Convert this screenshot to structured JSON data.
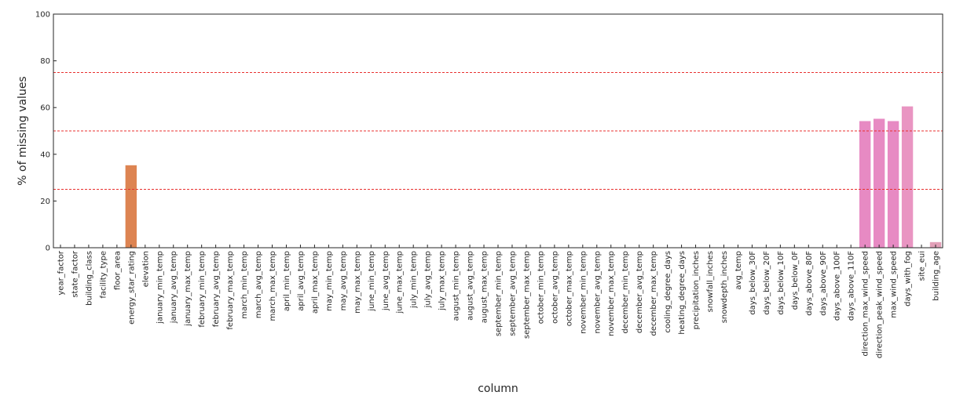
{
  "chart_data": {
    "type": "bar",
    "xlabel": "column",
    "ylabel": "% of missing values",
    "ylim": [
      0,
      100
    ],
    "yticks": [
      "0",
      "20",
      "40",
      "60",
      "80",
      "100"
    ],
    "reference_lines": [
      25,
      50,
      75
    ],
    "reference_line_color": "#e8302f",
    "grid": false,
    "categories": [
      "year_factor",
      "state_factor",
      "building_class",
      "facility_type",
      "floor_area",
      "energy_star_rating",
      "elevation",
      "january_min_temp",
      "january_avg_temp",
      "january_max_temp",
      "february_min_temp",
      "february_avg_temp",
      "february_max_temp",
      "march_min_temp",
      "march_avg_temp",
      "march_max_temp",
      "april_min_temp",
      "april_avg_temp",
      "april_max_temp",
      "may_min_temp",
      "may_avg_temp",
      "may_max_temp",
      "june_min_temp",
      "june_avg_temp",
      "june_max_temp",
      "july_min_temp",
      "july_avg_temp",
      "july_max_temp",
      "august_min_temp",
      "august_avg_temp",
      "august_max_temp",
      "september_min_temp",
      "september_avg_temp",
      "september_max_temp",
      "october_min_temp",
      "october_avg_temp",
      "october_max_temp",
      "november_min_temp",
      "november_avg_temp",
      "november_max_temp",
      "december_min_temp",
      "december_avg_temp",
      "december_max_temp",
      "cooling_degree_days",
      "heating_degree_days",
      "precipitation_inches",
      "snowfall_inches",
      "snowdepth_inches",
      "avg_temp",
      "days_below_30F",
      "days_below_20F",
      "days_below_10F",
      "days_below_0F",
      "days_above_80F",
      "days_above_90F",
      "days_above_100F",
      "days_above_110F",
      "direction_max_wind_speed",
      "direction_peak_wind_speed",
      "max_wind_speed",
      "days_with_fog",
      "site_eui",
      "building_age"
    ],
    "values": [
      0,
      0,
      0,
      0,
      0,
      35.3,
      0,
      0,
      0,
      0,
      0,
      0,
      0,
      0,
      0,
      0,
      0,
      0,
      0,
      0,
      0,
      0,
      0,
      0,
      0,
      0,
      0,
      0,
      0,
      0,
      0,
      0,
      0,
      0,
      0,
      0,
      0,
      0,
      0,
      0,
      0,
      0,
      0,
      0,
      0,
      0,
      0,
      0,
      0,
      0,
      0,
      0,
      0,
      0,
      0,
      0,
      0,
      54.2,
      55.2,
      54.2,
      60.5,
      0,
      2.4
    ],
    "bar_colors": {
      "energy_star_rating": "#dd8452",
      "direction_max_wind_speed": "#e78ac3",
      "direction_peak_wind_speed": "#e78ac3",
      "max_wind_speed": "#e78ac3",
      "days_with_fog": "#e995c2",
      "building_age": "#e2a0b8"
    }
  }
}
